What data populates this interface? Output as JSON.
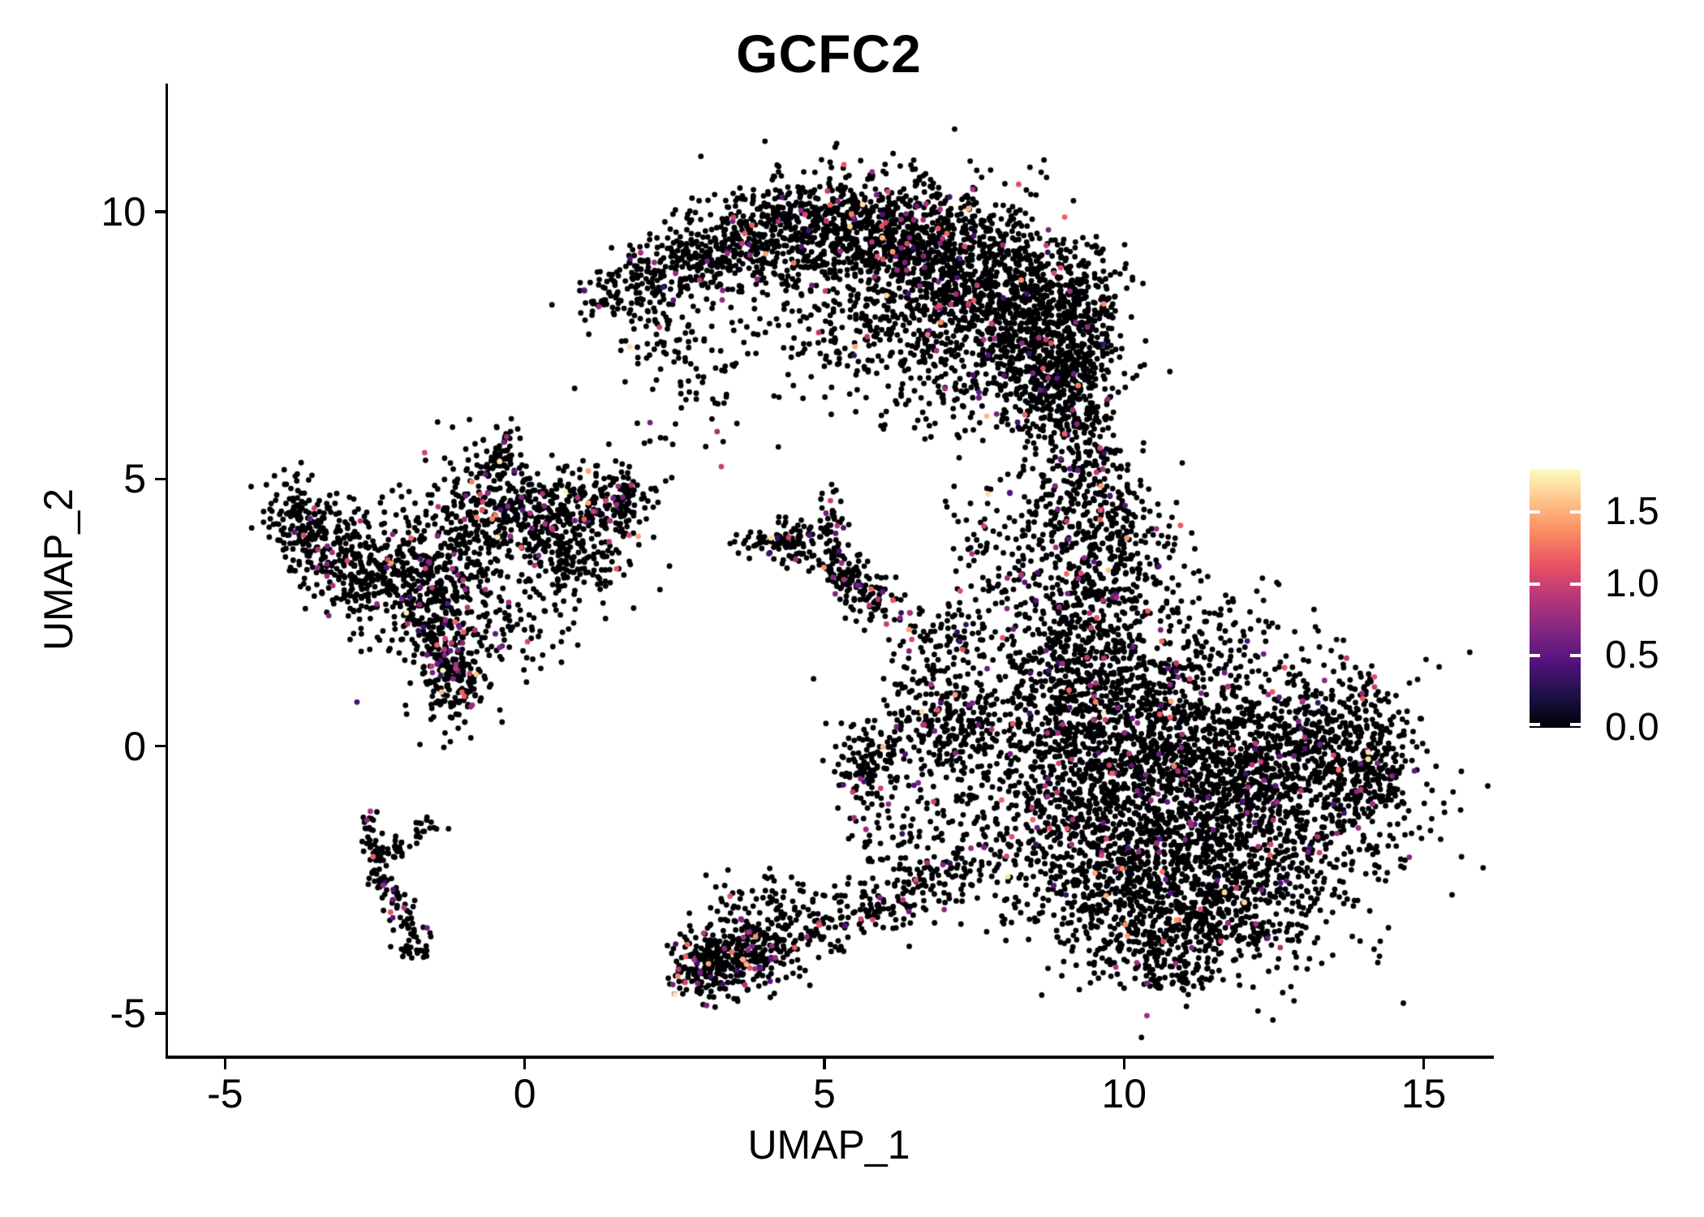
{
  "title": "GCFC2",
  "axes": {
    "x": {
      "label": "UMAP_1",
      "tick_labels": [
        "-5",
        "0",
        "5",
        "10",
        "15"
      ],
      "tick_values": [
        -5,
        0,
        5,
        10,
        15
      ]
    },
    "y": {
      "label": "UMAP_2",
      "tick_labels": [
        "10",
        "5",
        "0",
        "-5"
      ],
      "tick_values": [
        10,
        5,
        0,
        -5
      ]
    }
  },
  "legend": {
    "position": "right",
    "tick_labels": [
      "1.5",
      "1.0",
      "0.5",
      "0.0"
    ],
    "tick_values": [
      1.5,
      1.0,
      0.5,
      0.0
    ],
    "range": [
      0,
      1.8
    ]
  },
  "colors": {
    "background": "#FFFFFF",
    "axis": "#000000",
    "text": "#000000",
    "zero_expression": "#000004",
    "magma_stops": [
      [
        0.0,
        "#000004"
      ],
      [
        0.125,
        "#1D1147"
      ],
      [
        0.25,
        "#51127C"
      ],
      [
        0.375,
        "#822681"
      ],
      [
        0.5,
        "#B63679"
      ],
      [
        0.625,
        "#E65164"
      ],
      [
        0.75,
        "#FB8861"
      ],
      [
        0.875,
        "#FEC287"
      ],
      [
        1.0,
        "#FCFDBF"
      ]
    ]
  },
  "chart_data": {
    "type": "scatter",
    "title": "GCFC2",
    "xlabel": "UMAP_1",
    "ylabel": "UMAP_2",
    "xlim": [
      -5.98,
      16.13
    ],
    "ylim": [
      -5.79,
      12.4
    ],
    "grid": false,
    "legend_position": "right",
    "value_range": [
      0,
      1.8
    ],
    "point_radius_px": 3.4,
    "seed": 7,
    "colored_rate_default": 0.045,
    "value_bins": [
      {
        "p": 0.2,
        "lo": 0.32,
        "hi": 0.55
      },
      {
        "p": 0.45,
        "lo": 0.55,
        "hi": 0.9
      },
      {
        "p": 0.23,
        "lo": 0.9,
        "hi": 1.2
      },
      {
        "p": 0.09,
        "lo": 1.2,
        "hi": 1.55
      },
      {
        "p": 0.03,
        "lo": 1.55,
        "hi": 1.8
      }
    ],
    "clusters": [
      {
        "t": "g",
        "x": 1.35,
        "y": 8.35,
        "sx": 0.28,
        "sy": 0.28,
        "n": 45
      },
      {
        "t": "g",
        "x": 2.1,
        "y": 8.8,
        "sx": 0.4,
        "sy": 0.35,
        "n": 110
      },
      {
        "t": "g",
        "x": 3.0,
        "y": 9.2,
        "sx": 0.5,
        "sy": 0.42,
        "n": 180
      },
      {
        "t": "g",
        "x": 4.0,
        "y": 9.55,
        "sx": 0.55,
        "sy": 0.45,
        "n": 240
      },
      {
        "t": "g",
        "x": 5.0,
        "y": 9.75,
        "sx": 0.6,
        "sy": 0.5,
        "n": 300
      },
      {
        "t": "g",
        "x": 6.0,
        "y": 9.6,
        "sx": 0.65,
        "sy": 0.55,
        "n": 380
      },
      {
        "t": "g",
        "x": 7.0,
        "y": 9.2,
        "sx": 0.7,
        "sy": 0.65,
        "n": 480
      },
      {
        "t": "g",
        "x": 7.9,
        "y": 8.5,
        "sx": 0.7,
        "sy": 0.7,
        "n": 500
      },
      {
        "t": "g",
        "x": 8.6,
        "y": 7.6,
        "sx": 0.55,
        "sy": 0.65,
        "n": 360
      },
      {
        "t": "g",
        "x": 8.9,
        "y": 6.7,
        "sx": 0.45,
        "sy": 0.5,
        "n": 220
      },
      {
        "t": "g",
        "x": 9.2,
        "y": 8.4,
        "sx": 0.4,
        "sy": 0.55,
        "n": 180
      },
      {
        "t": "g",
        "x": 9.45,
        "y": 7.2,
        "sx": 0.3,
        "sy": 0.5,
        "n": 100
      },
      {
        "t": "g",
        "x": 4.8,
        "y": 8.2,
        "sx": 1.0,
        "sy": 0.65,
        "n": 90
      },
      {
        "t": "g",
        "x": 6.2,
        "y": 7.9,
        "sx": 0.85,
        "sy": 0.6,
        "n": 230
      },
      {
        "t": "g",
        "x": 7.3,
        "y": 6.6,
        "sx": 0.7,
        "sy": 0.5,
        "n": 120
      },
      {
        "t": "g",
        "x": 2.9,
        "y": 7.0,
        "sx": 0.55,
        "sy": 0.6,
        "n": 55
      },
      {
        "t": "g",
        "x": 2.2,
        "y": 7.9,
        "sx": 0.4,
        "sy": 0.4,
        "n": 45
      },
      {
        "t": "g",
        "x": 9.15,
        "y": 5.8,
        "sx": 0.35,
        "sy": 0.45,
        "n": 100
      },
      {
        "t": "g",
        "x": 9.35,
        "y": 4.7,
        "sx": 0.5,
        "sy": 0.6,
        "n": 180
      },
      {
        "t": "g",
        "x": 9.5,
        "y": 3.5,
        "sx": 0.55,
        "sy": 0.65,
        "n": 210
      },
      {
        "t": "g",
        "x": 9.3,
        "y": 2.4,
        "sx": 0.6,
        "sy": 0.55,
        "n": 160
      },
      {
        "t": "g",
        "x": 8.4,
        "y": 3.8,
        "sx": 0.55,
        "sy": 0.8,
        "n": 60
      },
      {
        "t": "g",
        "x": 10.3,
        "y": 3.6,
        "sx": 0.55,
        "sy": 0.7,
        "n": 90
      },
      {
        "t": "g",
        "x": 11.2,
        "y": -1.3,
        "sx": 1.6,
        "sy": 1.25,
        "n": 1600,
        "r": 0.04
      },
      {
        "t": "g",
        "x": 12.6,
        "y": -0.5,
        "sx": 1.0,
        "sy": 0.95,
        "n": 650,
        "r": 0.04
      },
      {
        "t": "g",
        "x": 10.4,
        "y": 0.7,
        "sx": 0.9,
        "sy": 0.75,
        "n": 480,
        "r": 0.04
      },
      {
        "t": "g",
        "x": 9.7,
        "y": -1.9,
        "sx": 0.9,
        "sy": 0.85,
        "n": 430,
        "r": 0.04
      },
      {
        "t": "g",
        "x": 11.4,
        "y": -3.1,
        "sx": 1.0,
        "sy": 0.55,
        "n": 380,
        "r": 0.04
      },
      {
        "t": "g",
        "x": 13.8,
        "y": 0.1,
        "sx": 0.5,
        "sy": 0.7,
        "n": 220,
        "r": 0.05
      },
      {
        "t": "g",
        "x": 14.25,
        "y": -0.4,
        "sx": 0.22,
        "sy": 0.45,
        "n": 70,
        "r": 0.05
      },
      {
        "t": "g",
        "x": 9.0,
        "y": 0.3,
        "sx": 0.55,
        "sy": 0.75,
        "n": 240,
        "r": 0.04
      },
      {
        "t": "g",
        "x": 10.4,
        "y": -3.7,
        "sx": 0.65,
        "sy": 0.4,
        "n": 140,
        "r": 0.04
      },
      {
        "t": "g",
        "x": 10.9,
        "y": -4.25,
        "sx": 0.45,
        "sy": 0.22,
        "n": 55,
        "r": 0.04
      },
      {
        "t": "g",
        "x": 9.3,
        "y": 1.5,
        "sx": 0.5,
        "sy": 0.5,
        "n": 160,
        "r": 0.04
      },
      {
        "t": "g",
        "x": 11.2,
        "y": 2.2,
        "sx": 0.9,
        "sy": 0.5,
        "n": 100,
        "r": 0.04
      },
      {
        "t": "g",
        "x": 7.8,
        "y": -0.6,
        "sx": 0.85,
        "sy": 1.1,
        "n": 200,
        "r": 0.05
      },
      {
        "t": "g",
        "x": 6.7,
        "y": 0.4,
        "sx": 0.45,
        "sy": 0.85,
        "n": 110,
        "r": 0.05
      },
      {
        "t": "g",
        "x": 5.7,
        "y": -0.3,
        "sx": 0.3,
        "sy": 0.35,
        "n": 110,
        "r": 0.08
      },
      {
        "t": "g",
        "x": 6.3,
        "y": -1.6,
        "sx": 0.5,
        "sy": 0.65,
        "n": 85,
        "r": 0.05
      },
      {
        "t": "g",
        "x": 7.2,
        "y": 1.9,
        "sx": 0.5,
        "sy": 0.5,
        "n": 55,
        "r": 0.05
      },
      {
        "t": "g",
        "x": 7.3,
        "y": 0.5,
        "sx": 0.4,
        "sy": 0.5,
        "n": 130,
        "r": 0.05
      },
      {
        "t": "g",
        "x": 3.25,
        "y": -4.05,
        "sx": 0.42,
        "sy": 0.33,
        "n": 240,
        "r": 0.08
      },
      {
        "t": "g",
        "x": 4.1,
        "y": -3.7,
        "sx": 0.5,
        "sy": 0.35,
        "n": 170,
        "r": 0.08
      },
      {
        "t": "l",
        "x1": 4.7,
        "y1": -3.5,
        "x2": 7.5,
        "y2": -2.3,
        "w": 0.3,
        "n": 190,
        "r": 0.06
      },
      {
        "t": "g",
        "x": 3.9,
        "y": -2.9,
        "sx": 0.55,
        "sy": 0.4,
        "n": 55,
        "r": 0.06
      },
      {
        "t": "g",
        "x": 2.85,
        "y": -4.35,
        "sx": 0.2,
        "sy": 0.15,
        "n": 40,
        "r": 0.1
      },
      {
        "t": "l",
        "x1": -2.62,
        "y1": -1.15,
        "x2": -2.52,
        "y2": -2.2,
        "w": 0.09,
        "n": 32,
        "r": 0.05
      },
      {
        "t": "l",
        "x1": -2.5,
        "y1": -2.15,
        "x2": -1.5,
        "y2": -1.42,
        "w": 0.11,
        "n": 45,
        "r": 0.05
      },
      {
        "t": "l",
        "x1": -2.48,
        "y1": -2.35,
        "x2": -1.78,
        "y2": -3.65,
        "w": 0.12,
        "n": 68,
        "r": 0.05
      },
      {
        "t": "g",
        "x": -1.85,
        "y": -3.85,
        "sx": 0.16,
        "sy": 0.13,
        "n": 26,
        "r": 0.05
      },
      {
        "t": "g",
        "x": -3.75,
        "y": 4.3,
        "sx": 0.3,
        "sy": 0.33,
        "n": 120,
        "r": 0.05
      },
      {
        "t": "g",
        "x": -3.25,
        "y": 3.6,
        "sx": 0.35,
        "sy": 0.42,
        "n": 150,
        "r": 0.05
      },
      {
        "t": "g",
        "x": -2.7,
        "y": 3.1,
        "sx": 0.33,
        "sy": 0.33,
        "n": 110,
        "r": 0.05
      },
      {
        "t": "g",
        "x": -2.2,
        "y": 3.9,
        "sx": 0.5,
        "sy": 0.5,
        "n": 65,
        "r": 0.05
      },
      {
        "t": "g",
        "x": -1.6,
        "y": 2.9,
        "sx": 0.55,
        "sy": 0.7,
        "n": 360,
        "r": 0.07
      },
      {
        "t": "g",
        "x": -1.15,
        "y": 1.25,
        "sx": 0.28,
        "sy": 0.45,
        "n": 150,
        "r": 0.14
      },
      {
        "t": "l",
        "x1": -1.5,
        "y1": 2.1,
        "x2": -1.1,
        "y2": 0.9,
        "w": 0.22,
        "n": 75,
        "r": 0.1
      },
      {
        "t": "g",
        "x": -0.7,
        "y": 4.6,
        "sx": 0.42,
        "sy": 0.65,
        "n": 190,
        "r": 0.06
      },
      {
        "t": "l",
        "x1": -0.45,
        "y1": 5.0,
        "x2": -0.33,
        "y2": 5.85,
        "w": 0.1,
        "n": 32,
        "r": 0.05
      },
      {
        "t": "g",
        "x": 0.3,
        "y": 4.25,
        "sx": 0.5,
        "sy": 0.5,
        "n": 200,
        "r": 0.06
      },
      {
        "t": "g",
        "x": 1.1,
        "y": 4.4,
        "sx": 0.45,
        "sy": 0.42,
        "n": 160,
        "r": 0.09
      },
      {
        "t": "g",
        "x": 0.9,
        "y": 3.4,
        "sx": 0.5,
        "sy": 0.42,
        "n": 120,
        "r": 0.07
      },
      {
        "t": "g",
        "x": -0.9,
        "y": 3.4,
        "sx": 0.95,
        "sy": 0.85,
        "n": 140,
        "r": 0.06
      },
      {
        "t": "g",
        "x": 1.65,
        "y": 4.5,
        "sx": 0.22,
        "sy": 0.28,
        "n": 45,
        "r": 0.06
      },
      {
        "t": "g",
        "x": -0.3,
        "y": 2.2,
        "sx": 0.5,
        "sy": 0.45,
        "n": 60,
        "r": 0.06
      },
      {
        "t": "g",
        "x": 4.5,
        "y": 3.8,
        "sx": 0.2,
        "sy": 0.2,
        "n": 65,
        "r": 0.06
      },
      {
        "t": "l",
        "x1": 5.0,
        "y1": 3.55,
        "x2": 5.95,
        "y2": 2.55,
        "w": 0.2,
        "n": 150,
        "r": 0.1
      },
      {
        "t": "l",
        "x1": 5.1,
        "y1": 4.65,
        "x2": 5.12,
        "y2": 3.7,
        "w": 0.12,
        "n": 40,
        "r": 0.06
      },
      {
        "t": "l",
        "x1": 3.45,
        "y1": 3.75,
        "x2": 4.25,
        "y2": 3.88,
        "w": 0.13,
        "n": 35,
        "r": 0.05
      },
      {
        "t": "g",
        "x": 6.9,
        "y": 2.1,
        "sx": 0.5,
        "sy": 0.6,
        "n": 60,
        "r": 0.06
      },
      {
        "t": "g",
        "x": 7.5,
        "y": 3.7,
        "sx": 0.4,
        "sy": 0.55,
        "n": 40,
        "r": 0.08
      },
      {
        "t": "g",
        "x": 2.3,
        "y": 5.6,
        "sx": 0.6,
        "sy": 0.55,
        "n": 30,
        "r": 0.05
      }
    ]
  }
}
